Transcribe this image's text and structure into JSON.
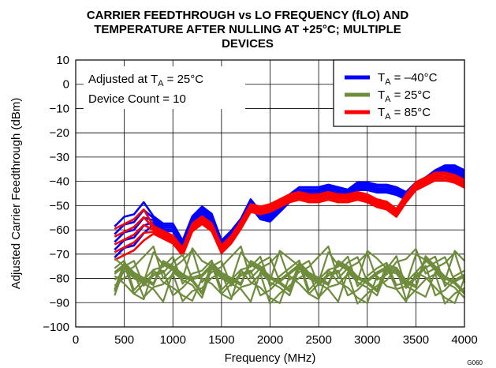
{
  "chart_data": {
    "type": "line",
    "title_lines": [
      "CARRIER FEEDTHROUGH vs LO FREQUENCY (fLO) AND",
      "TEMPERATURE AFTER NULLING AT +25°C; MULTIPLE",
      "DEVICES"
    ],
    "xlabel": "Frequency (MHz)",
    "ylabel": "Adjusted Carrier Feedthrough (dBm)",
    "xlim": [
      0,
      4000
    ],
    "ylim": [
      -100,
      10
    ],
    "xticks": [
      0,
      500,
      1000,
      1500,
      2000,
      2500,
      3000,
      3500,
      4000
    ],
    "yticks": [
      10,
      0,
      -10,
      -20,
      -30,
      -40,
      -50,
      -60,
      -70,
      -80,
      -90,
      -100
    ],
    "grid": true,
    "legend_position": "top-right",
    "annotation": {
      "line1_prefix": "Adjusted at T",
      "line1_sub": "A",
      "line1_suffix": " = 25°C",
      "line2": "Device Count = 10"
    },
    "figure_code": "G060",
    "x": [
      400,
      500,
      600,
      700,
      800,
      900,
      1000,
      1100,
      1200,
      1300,
      1400,
      1500,
      1600,
      1700,
      1800,
      1900,
      2000,
      2100,
      2200,
      2300,
      2400,
      2500,
      2600,
      2700,
      2800,
      2900,
      3000,
      3100,
      3200,
      3300,
      3400,
      3500,
      3600,
      3700,
      3800,
      3900,
      4000
    ],
    "series": [
      {
        "name_main": "T",
        "name_sub": "A",
        "name_suffix": " = –40°C",
        "color": "#0000ff",
        "band": 3,
        "values": [
          -65,
          -61,
          -60,
          -55,
          -56,
          -59,
          -59,
          -66,
          -56,
          -52,
          -55,
          -66,
          -62,
          -57,
          -49,
          -54,
          -55,
          -51,
          -47,
          -44,
          -44,
          -44,
          -43,
          -44,
          -45,
          -42,
          -42,
          -43,
          -43,
          -44,
          -46,
          -42,
          -40,
          -37,
          -35,
          -35,
          -37
        ]
      },
      {
        "name_main": "T",
        "name_sub": "A",
        "name_suffix": " = 25°C",
        "color": "#6e8c3c",
        "band": 0,
        "values": [
          -79,
          -79,
          -80,
          -79,
          -78,
          -80,
          -79,
          -79,
          -78,
          -80,
          -79,
          -80,
          -79,
          -78,
          -80,
          -79,
          -80,
          -79,
          -79,
          -79,
          -80,
          -79,
          -78,
          -80,
          -79,
          -80,
          -79,
          -79,
          -80,
          -78,
          -80,
          -79,
          -78,
          -79,
          -80,
          -79,
          -80
        ]
      },
      {
        "name_main": "T",
        "name_sub": "A",
        "name_suffix": " = 85°C",
        "color": "#ff0000",
        "band": 3,
        "values": [
          -66,
          -64,
          -62,
          -58,
          -60,
          -62,
          -64,
          -69,
          -59,
          -56,
          -59,
          -68,
          -64,
          -58,
          -51,
          -52,
          -51,
          -49,
          -47,
          -46,
          -47,
          -47,
          -46,
          -47,
          -47,
          -46,
          -47,
          -49,
          -50,
          -53,
          -47,
          -42,
          -40,
          -38,
          -38,
          -39,
          -41
        ]
      }
    ]
  }
}
